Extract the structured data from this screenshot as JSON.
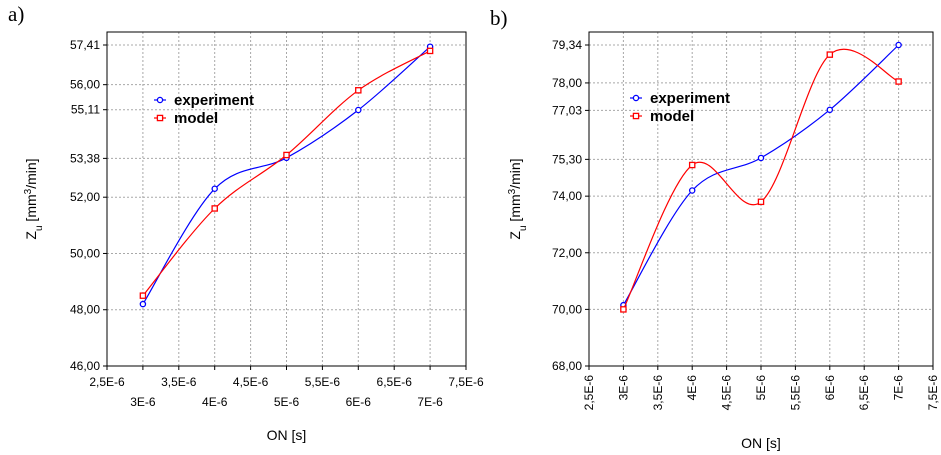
{
  "chart_data": [
    {
      "panel_label": "a)",
      "type": "line",
      "xlabel": "ON [s]",
      "ylabel": "Z",
      "ylabel_sub": "u",
      "ylabel_unit_pre": " [mm",
      "ylabel_unit_sup": "3",
      "ylabel_unit_post": "/min]",
      "xlim": [
        2.5e-06,
        7.5e-06
      ],
      "ylim": [
        46.0,
        57.41
      ],
      "x_major_ticks": [
        3e-06,
        4e-06,
        5e-06,
        6e-06,
        7e-06
      ],
      "x_major_labels": [
        "3E-6",
        "4E-6",
        "5E-6",
        "6E-6",
        "7E-6"
      ],
      "x_minor_ticks": [
        2.5e-06,
        3.5e-06,
        4.5e-06,
        5.5e-06,
        6.5e-06,
        7.5e-06
      ],
      "x_minor_labels": [
        "2,5E-6",
        "3,5E-6",
        "4,5E-6",
        "5,5E-6",
        "6,5E-6",
        "7,5E-6"
      ],
      "x_tick_rotation": "horizontal",
      "y_ticks": [
        46.0,
        48.0,
        50.0,
        52.0,
        53.38,
        55.11,
        56.0,
        57.41
      ],
      "y_tick_labels": [
        "46,00",
        "48,00",
        "50,00",
        "52,00",
        "53,38",
        "55,11",
        "56,00",
        "57,41"
      ],
      "grid": true,
      "legend_placement": "upper-left",
      "series": [
        {
          "name": "experiment",
          "color": "#0000ff",
          "marker": "circle",
          "x": [
            3e-06,
            4e-06,
            5e-06,
            6e-06,
            7e-06
          ],
          "y": [
            48.2,
            52.3,
            53.4,
            55.1,
            57.35
          ]
        },
        {
          "name": "model",
          "color": "#ff0000",
          "marker": "square",
          "x": [
            3e-06,
            4e-06,
            5e-06,
            6e-06,
            7e-06
          ],
          "y": [
            48.5,
            51.6,
            53.5,
            55.8,
            57.2
          ]
        }
      ]
    },
    {
      "panel_label": "b)",
      "type": "line",
      "xlabel": "ON [s]",
      "ylabel": "Z",
      "ylabel_sub": "u",
      "ylabel_unit_pre": " [mm",
      "ylabel_unit_sup": "3",
      "ylabel_unit_post": "/min]",
      "xlim": [
        2.5e-06,
        7.5e-06
      ],
      "ylim": [
        68.0,
        79.34
      ],
      "x_major_ticks": [
        3e-06,
        4e-06,
        5e-06,
        6e-06,
        7e-06
      ],
      "x_major_labels": [
        "3E-6",
        "4E-6",
        "5E-6",
        "6E-6",
        "7E-6"
      ],
      "x_minor_ticks": [
        2.5e-06,
        3.5e-06,
        4.5e-06,
        5.5e-06,
        6.5e-06,
        7.5e-06
      ],
      "x_minor_labels": [
        "2,5E-6",
        "3,5E-6",
        "4,5E-6",
        "5,5E-6",
        "6,5E-6",
        "7,5E-6"
      ],
      "x_tick_rotation": "vertical",
      "y_ticks": [
        68.0,
        70.0,
        72.0,
        74.0,
        75.3,
        77.03,
        78.0,
        79.34
      ],
      "y_tick_labels": [
        "68,00",
        "70,00",
        "72,00",
        "74,00",
        "75,30",
        "77,03",
        "78,00",
        "79,34"
      ],
      "grid": true,
      "legend_placement": "upper-left",
      "series": [
        {
          "name": "experiment",
          "color": "#0000ff",
          "marker": "circle",
          "x": [
            3e-06,
            4e-06,
            5e-06,
            6e-06,
            7e-06
          ],
          "y": [
            70.15,
            74.2,
            75.35,
            77.05,
            79.34
          ]
        },
        {
          "name": "model",
          "color": "#ff0000",
          "marker": "square",
          "x": [
            3e-06,
            4e-06,
            5e-06,
            6e-06,
            7e-06
          ],
          "y": [
            70.0,
            75.1,
            73.8,
            79.0,
            78.05
          ]
        }
      ]
    }
  ]
}
